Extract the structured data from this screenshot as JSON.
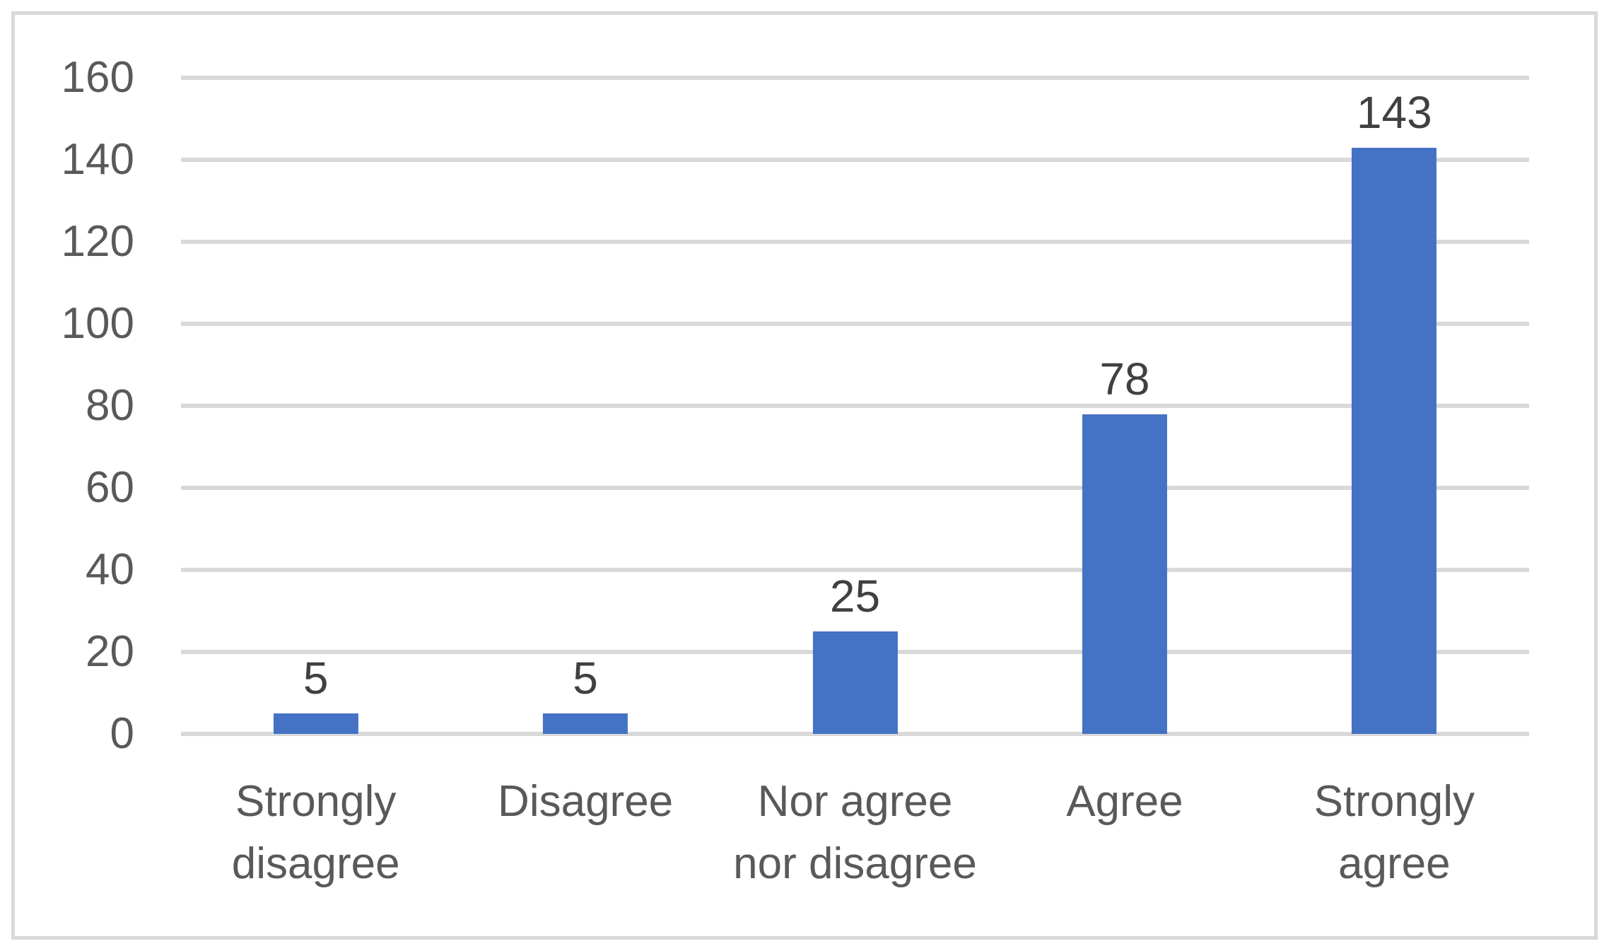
{
  "chart_data": {
    "type": "bar",
    "categories": [
      "Strongly disagree",
      "Disagree",
      "Nor agree nor disagree",
      "Agree",
      "Strongly agree"
    ],
    "values": [
      5,
      5,
      25,
      78,
      143
    ],
    "title": "",
    "xlabel": "",
    "ylabel": "",
    "ylim": [
      0,
      160
    ],
    "yticks": [
      0,
      20,
      40,
      60,
      80,
      100,
      120,
      140,
      160
    ],
    "grid": true,
    "legend": "none",
    "data_labels_shown": true,
    "colors": {
      "bar": "#4472c4",
      "gridline": "#d9d9d9",
      "frame_border": "#d9d9d9",
      "axis_text": "#595959",
      "data_label_text": "#404040"
    }
  }
}
